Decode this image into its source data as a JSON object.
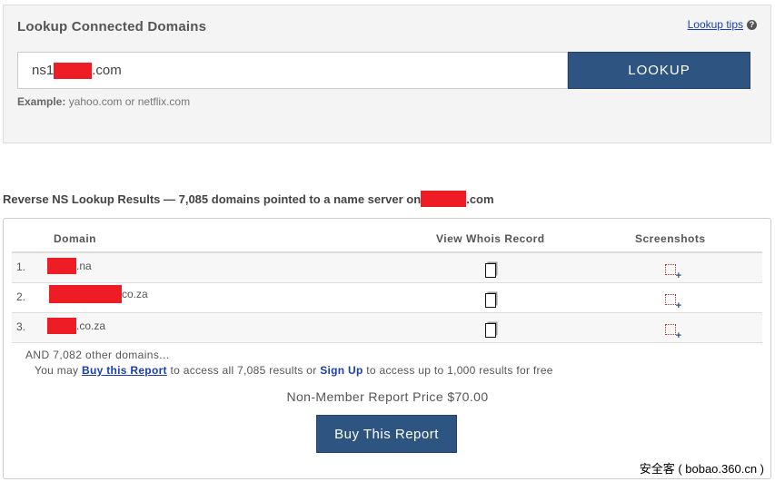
{
  "lookup": {
    "title": "Lookup Connected Domains",
    "tips_label": "Lookup tips",
    "help_icon": "?",
    "input_prefix": "ns1",
    "input_suffix": ".com",
    "button_label": "LOOKUP",
    "example_label": "Example:",
    "example_text": "yahoo.com or netflix.com"
  },
  "results": {
    "heading": "Reverse NS Lookup Results — 7,085 domains pointed to a name server on",
    "heading_suffix": ".com",
    "columns": [
      "Domain",
      "View Whois Record",
      "Screenshots"
    ],
    "rows": [
      {
        "num": "1.",
        "domain_suffix": ".na"
      },
      {
        "num": "2.",
        "domain_suffix": "co.za"
      },
      {
        "num": "3.",
        "domain_suffix": ".co.za"
      }
    ],
    "more_text": "AND 7,082 other domains...",
    "may_prefix": "You may ",
    "buy_link": "Buy this Report",
    "may_middle": " to access all 7,085 results or ",
    "signup_link": "Sign Up",
    "may_suffix": " to access up to 1,000 results for free",
    "price": "Non-Member Report Price $70.00",
    "buy_button": "Buy This Report"
  },
  "watermark": "安全客 ( bobao.360.cn )",
  "colors": {
    "accent": "#2e5481",
    "redaction": "#ee1c25",
    "link": "#1a3fb0"
  }
}
